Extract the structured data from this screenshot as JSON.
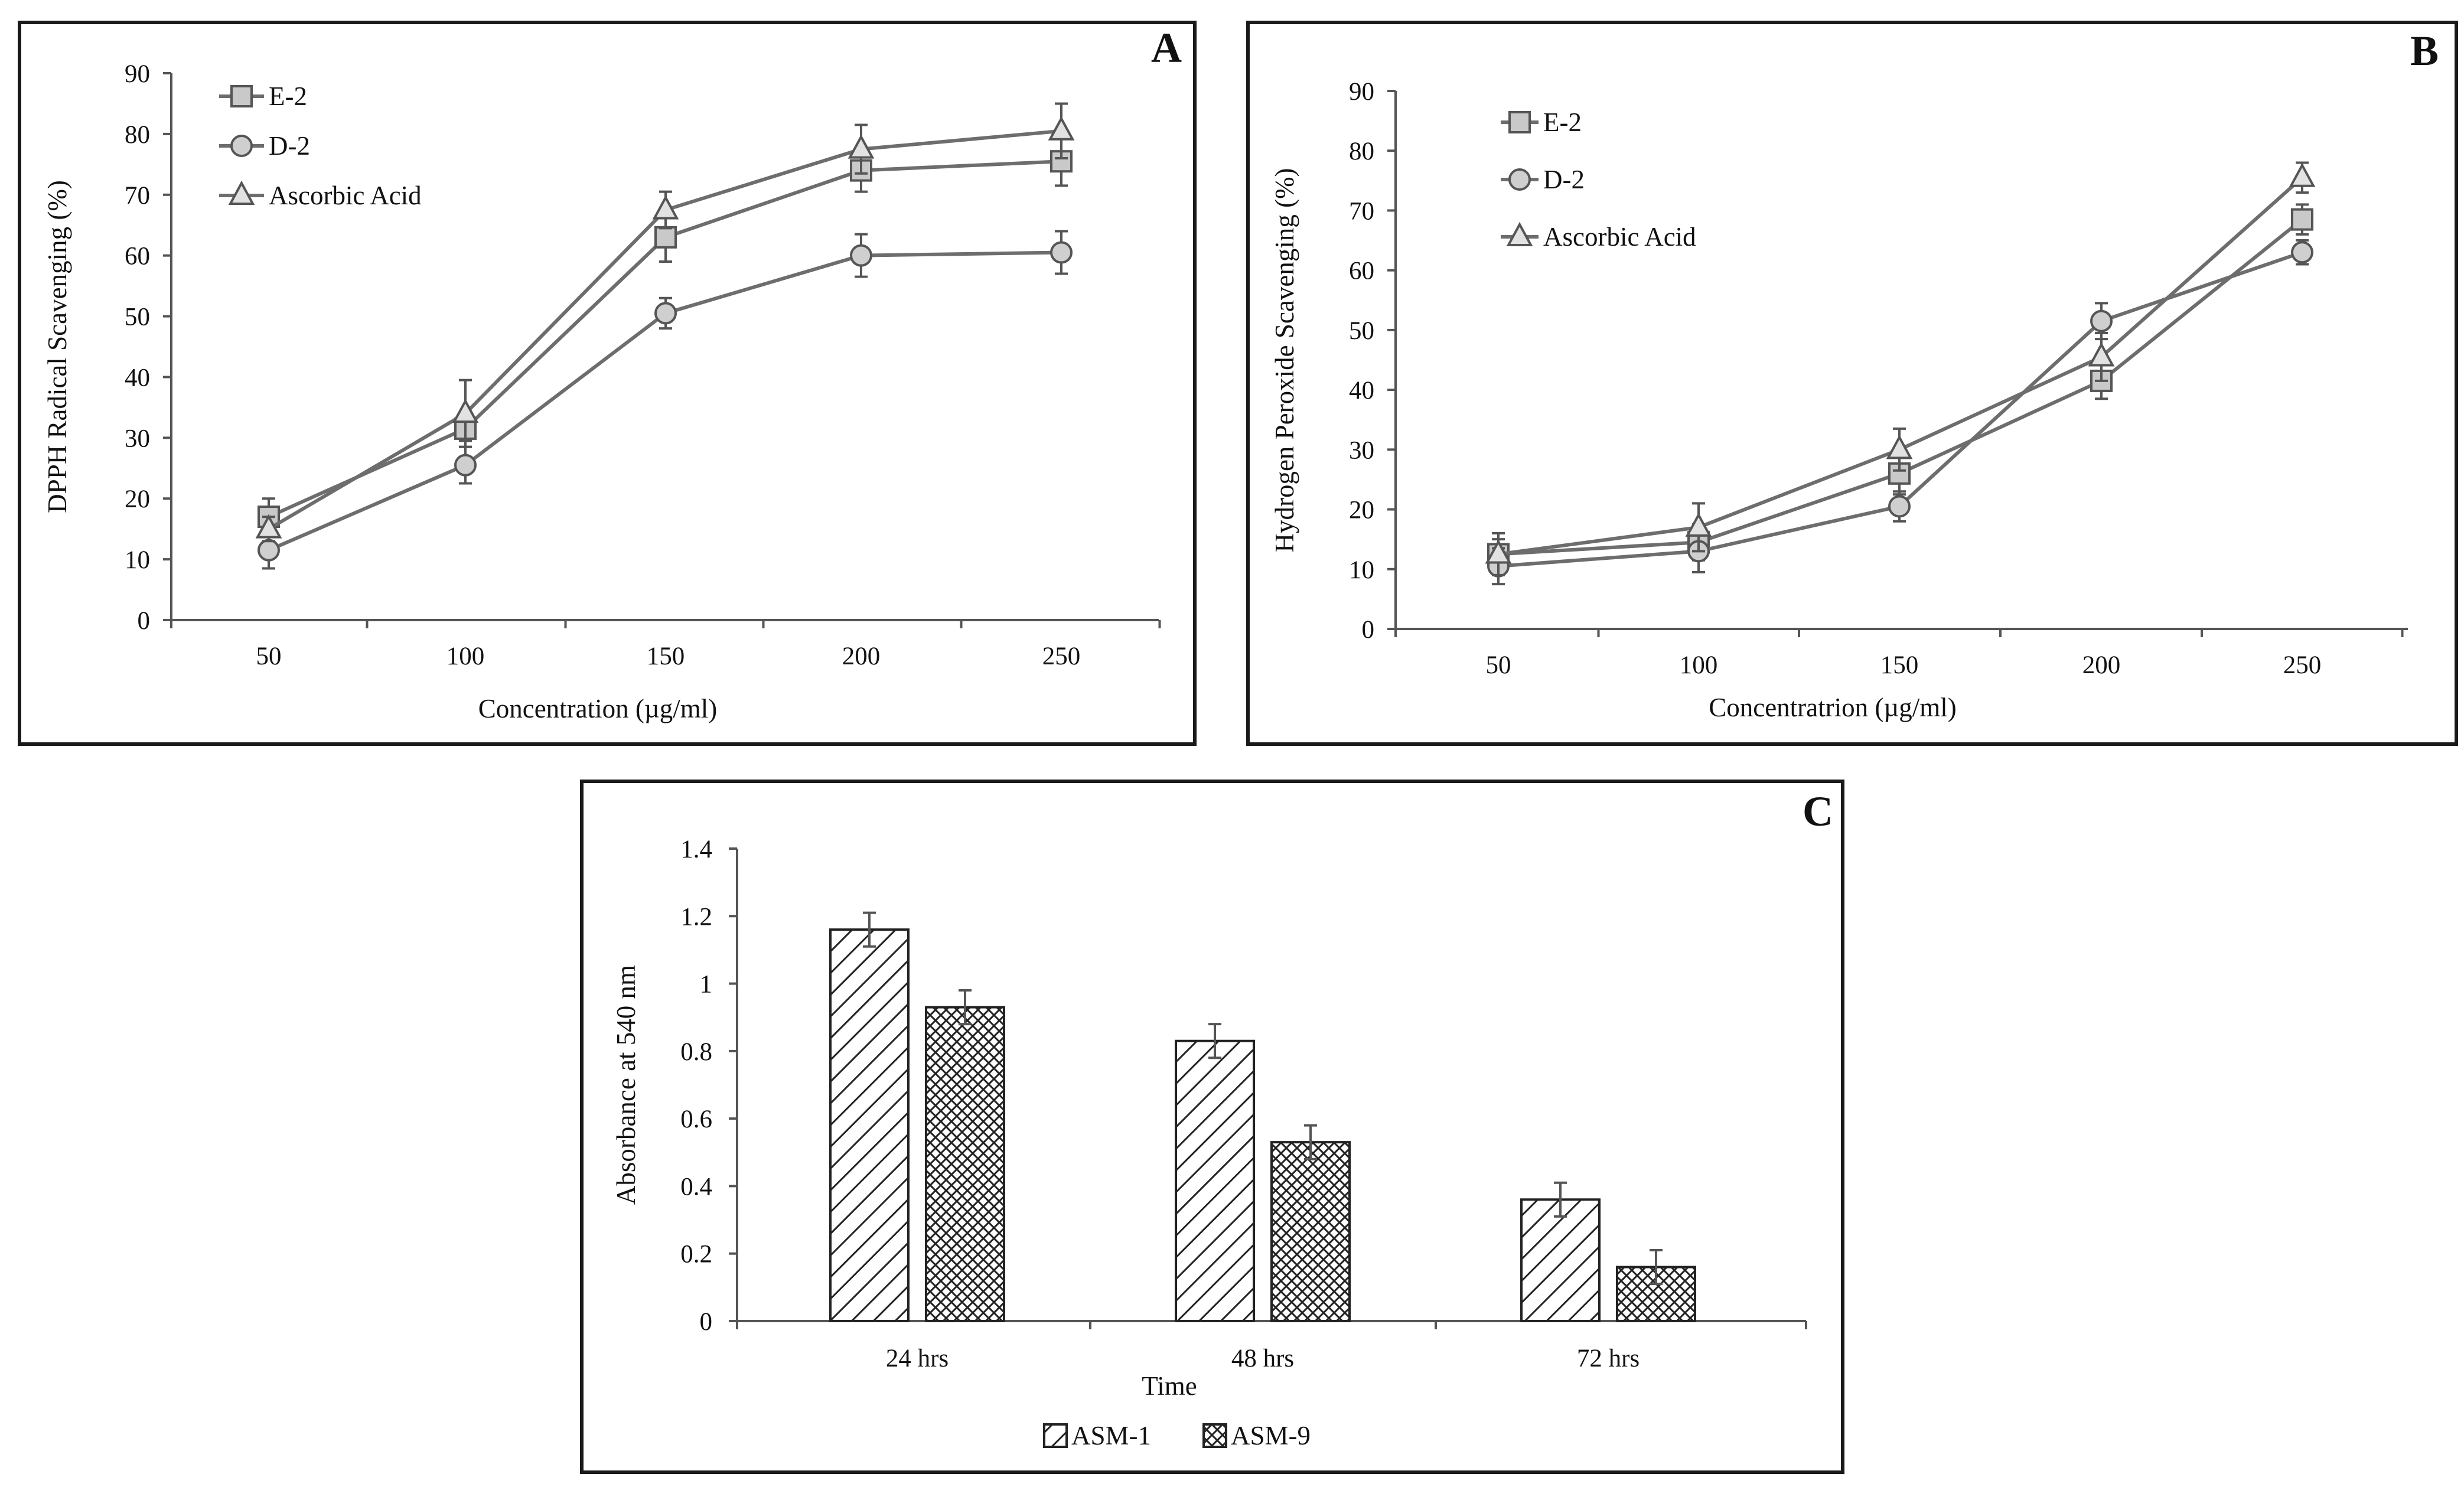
{
  "chart_data": [
    {
      "panel": "A",
      "type": "line",
      "title": "",
      "xlabel": "Concentration (µg/ml)",
      "ylabel": "DPPH Radical Scavenging (%)",
      "categories": [
        "50",
        "100",
        "150",
        "200",
        "250"
      ],
      "ylim": [
        0,
        90
      ],
      "yticks": [
        0,
        10,
        20,
        30,
        40,
        50,
        60,
        70,
        80,
        90
      ],
      "legend_position": "top-left",
      "series": [
        {
          "name": "E-2",
          "marker": "square",
          "values": [
            17,
            31.5,
            63,
            74,
            75.5
          ],
          "errors": [
            3,
            2,
            4,
            3.5,
            4
          ]
        },
        {
          "name": "D-2",
          "marker": "circle",
          "values": [
            11.5,
            25.5,
            50.5,
            60,
            60.5
          ],
          "errors": [
            3,
            3,
            2.5,
            3.5,
            3.5
          ]
        },
        {
          "name": "Ascorbic Acid",
          "marker": "triangle",
          "values": [
            15,
            34,
            67.5,
            77.5,
            80.5
          ],
          "errors": [
            2,
            5.5,
            3,
            4,
            4.5
          ]
        }
      ]
    },
    {
      "panel": "B",
      "type": "line",
      "title": "",
      "xlabel": "Concentratrion (µg/ml)",
      "ylabel": "Hydrogen Peroxide Scavenging  (%)",
      "categories": [
        "50",
        "100",
        "150",
        "200",
        "250"
      ],
      "ylim": [
        0,
        90
      ],
      "yticks": [
        0,
        10,
        20,
        30,
        40,
        50,
        60,
        70,
        80,
        90
      ],
      "legend_position": "top-left",
      "series": [
        {
          "name": "E-2",
          "marker": "square",
          "values": [
            12.5,
            14.5,
            26,
            41.5,
            68.5
          ],
          "errors": [
            2.5,
            3,
            3.5,
            3,
            2.5
          ]
        },
        {
          "name": "D-2",
          "marker": "circle",
          "values": [
            10.5,
            13,
            20.5,
            51.5,
            63
          ],
          "errors": [
            3,
            3.5,
            2.5,
            3,
            2
          ]
        },
        {
          "name": "Ascorbic Acid",
          "marker": "triangle",
          "values": [
            12.5,
            17,
            30,
            45.5,
            75.5
          ],
          "errors": [
            3.5,
            4,
            3.5,
            4,
            2.5
          ]
        }
      ]
    },
    {
      "panel": "C",
      "type": "bar",
      "title": "",
      "xlabel": "Time",
      "ylabel": "Absorbance at 540 nm",
      "categories": [
        "24 hrs",
        "48 hrs",
        "72 hrs"
      ],
      "ylim": [
        0,
        1.4
      ],
      "yticks": [
        "0",
        "0.2",
        "0.4",
        "0.6",
        "0.8",
        "1",
        "1.2",
        "1.4"
      ],
      "legend_position": "bottom",
      "series": [
        {
          "name": "ASM-1",
          "pattern": "diagonal-hatch",
          "values": [
            1.16,
            0.83,
            0.36
          ],
          "errors": [
            0.05,
            0.05,
            0.05
          ]
        },
        {
          "name": "ASM-9",
          "pattern": "cross-hatch",
          "values": [
            0.93,
            0.53,
            0.16
          ],
          "errors": [
            0.05,
            0.05,
            0.05
          ]
        }
      ]
    }
  ]
}
